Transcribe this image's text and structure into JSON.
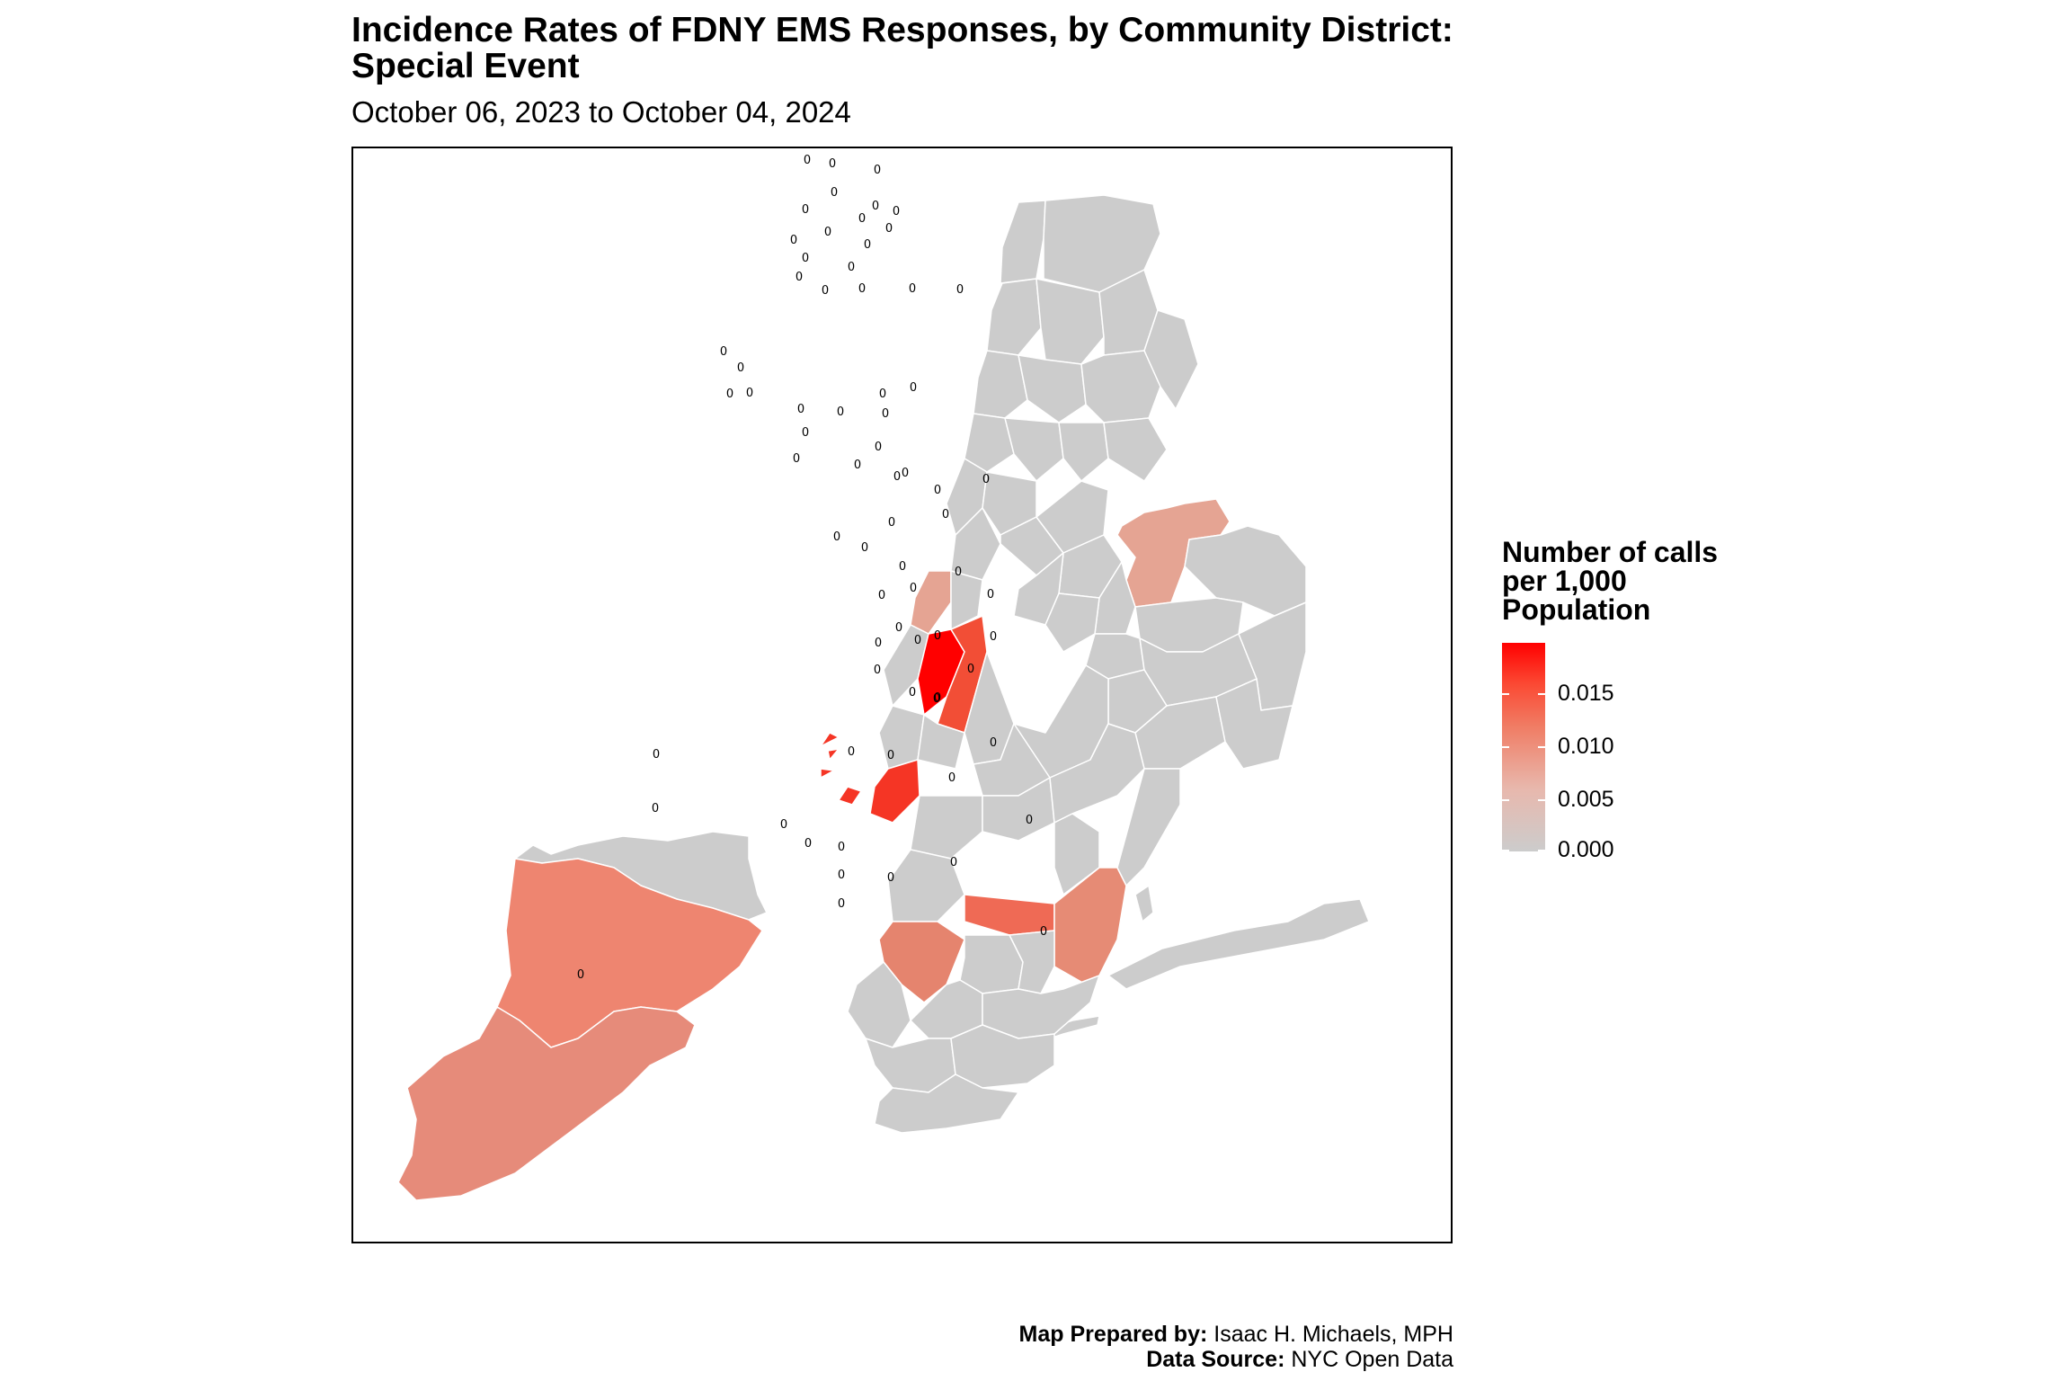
{
  "title_line1": "Incidence Rates of FDNY EMS Responses, by Community District:",
  "title_line2": "Special Event",
  "subtitle": "October 06, 2023 to October 04, 2024",
  "legend": {
    "title_line1": "Number of calls",
    "title_line2": "per 1,000",
    "title_line3": "Population",
    "ticks": [
      "0.015",
      "0.010",
      "0.005",
      "0.000"
    ],
    "scale": {
      "min": 0.0,
      "max": 0.0195,
      "low_color": "#cccccc",
      "high_color": "#ff0000"
    }
  },
  "caption": {
    "prepared_label": "Map Prepared by:",
    "prepared_value": "Isaac H. Michaels, MPH",
    "source_label": "Data Source:",
    "source_value": "NYC Open Data"
  },
  "region_label_text": "0",
  "colors": {
    "no_data": "#cccccc",
    "high": "#ff0000",
    "border": "#ffffff"
  }
}
